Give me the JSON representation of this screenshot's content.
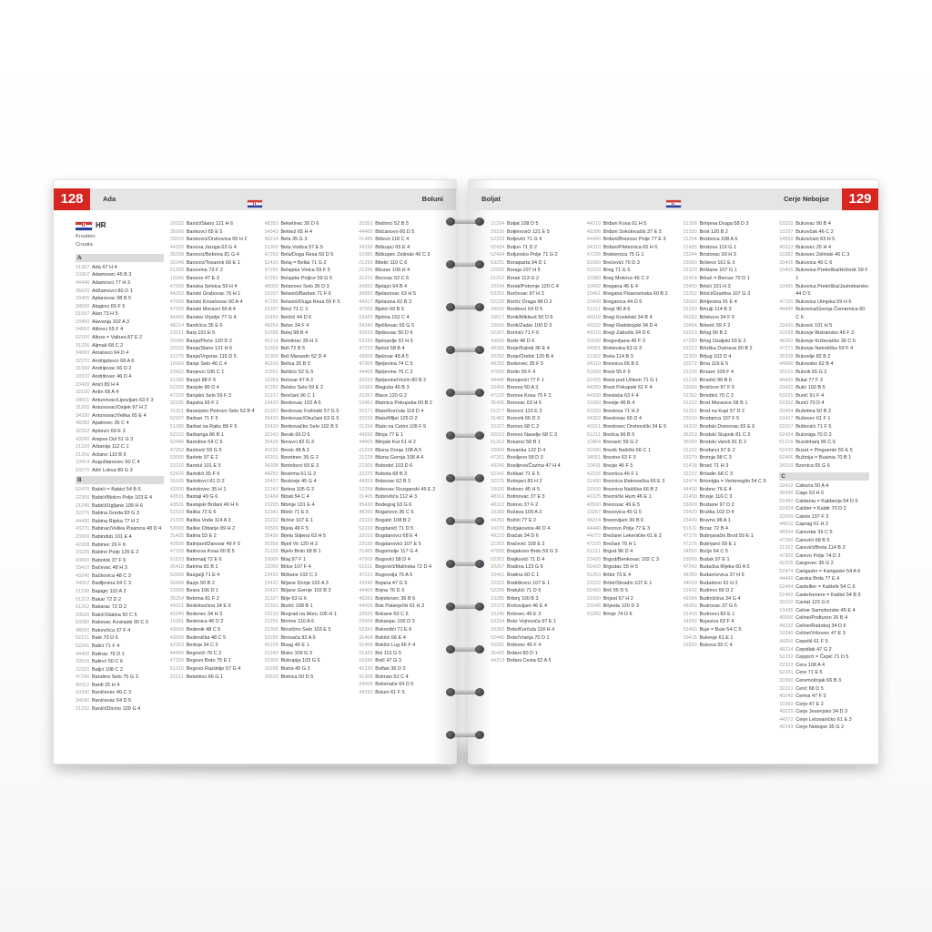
{
  "colors": {
    "accent_red": "#d7261f",
    "header_bar": "#e5e5e5",
    "code_text": "#a89a8e"
  },
  "left_page": {
    "number": "128",
    "tab_first": "Ada",
    "tab_last": "Boluni"
  },
  "right_page": {
    "number": "129",
    "tab_first": "Boljat",
    "tab_last": "Cerje Nebojse"
  },
  "intro": {
    "country_code": "HR",
    "name_de": "Kroatien",
    "name_en": "Croatia"
  },
  "columns": {
    "l1": [
      "§A",
      "31307 Ada 67 H 4",
      "10362 Adamovec 46 B 3",
      "44446 Adamovci 77 H 3",
      "35620 Adžamovci 80 D 1",
      "33405 Ajdanovac 98 B 5",
      "34000 Alaginci 65 F 5",
      "51557 Alan 73 H 5",
      "23450 Alavanja 102 A 3",
      "34550 Alilovci 65 F 4",
      "52100 Altura = Valtura 87 E 2",
      "31226 Aljmaš 68 C 2",
      "34000 Amatovci 64 D 4",
      "32270 Andrijaševci 68 A 6",
      "31500 Andrijevac 66 D 2",
      "10370 Andrilovec 46 D 4",
      "23420 Anići 89 H 4",
      "32100 Antin 68 A 4",
      "34551 Antunovac/Lipovljani 63 F 3",
      "31200 Antunovac/Osijek 67 H 2",
      "34330 Antunovac/Velika 65 E 4",
      "48260 Apatovec 36 C 4",
      "32252 Apševci 69 E 3",
      "43290 Arapov Dol 51 G 3",
      "21220 Arbanija 112 C 1",
      "21256 Aržano 110 B 5",
      "10414 Auguštanovec 60 C 4",
      "53270 Ažić Lokva 89 G 3",
      "§B",
      "52470 Babići = Babici 54 B 6",
      "22300 Babići/Mokro Polje 103 E 4",
      "21240 Babići/Ugljane 109 H 6",
      "32276 Babina Greda 83 G 3",
      "44430 Babina Rijeka 77 H 2",
      "43270 Babinac/Velika Pisanica 48 D 4",
      "23000 Babindub 101 E 4",
      "42208 Babinec 26 F 6",
      "20225 Babino Polje 125 E 2",
      "43000 Babotok 37 F 6",
      "33410 Bačevac 48 H 3",
      "43240 Bačkovica 48 C 3",
      "34552 Badljevina 64 C 3",
      "21230 Bajagić 110 A 2",
      "51222 Bakar 72 D 2",
      "51262 Bakarac 72 D 2",
      "33520 Bakić/Slatina 50 C 5",
      "53280 Bakovac Kosinjski 90 C 5",
      "48000 Bakovčica 37 F 4",
      "52211 Bale 70 D 6",
      "52341 Balići 71 F 4",
      "44400 Balinac 76 D 1",
      "33515 Balinci 50 C 6",
      "22320 Baljci 108 C 2",
      "47240 Bandino Selo 75 G 3",
      "40312 Banfi 25 H 4",
      "10340 Baničevec 46 C 3",
      "34540 Banićevac 64 D 5",
      "21232 Banići/Dicmo 109 G 4"
    ],
    "l2": [
      "20232 Banići/Slano 121 H 6",
      "35000 Bankovci 65 E 5",
      "33515 Bankovci/Orahovica 65 H 2",
      "44320 Banova Jaruga 63 G 4",
      "35208 Banovci/Bebrina 81 G 4",
      "32249 Banovci/Tovarnik 69 E 1",
      "51300 Banovina 73 F 2",
      "10340 Banovo 47 E 3",
      "47000 Banska Selnica 59 H 4",
      "44250 Banski Grabovac 76 H 1",
      "47000 Banski Kovačevac 60 A 4",
      "47000 Banski Moravci 60 A 4",
      "44400 Bansko Vrpolje 77 G 4",
      "48214 Banšćica 35 E 6",
      "23211 Banj 101 E 5",
      "20340 Banja/Ploče 120 D 2",
      "20232 Banja/Slano 121 H 6",
      "21276 Banja/Vrgorac 115 D 5",
      "10360 Banje Selo 46 C 4",
      "23422 Banjevci 106 C 1",
      "51280 Banjol 88 F 5",
      "52203 Banjole 86 D 4",
      "47220 Banjsko Selo 59 F 3",
      "32235 Bapska 69 F 2",
      "31321 Baranjsko Petrovo Selo 52 B 4",
      "52207 Barban 71 F 5",
      "51280 Barbat na Rabu 88 F 5",
      "52215 Barbariga 86 B 1",
      "52446 Baredine 54 C 6",
      "47252 Barilović 59 G 5",
      "53000 Barlete 97 E 2",
      "23210 Barotul 101 E 5",
      "52420 Bartolići 55 F 6",
      "35105 Bartolovci 81 D 2",
      "42000 Bartolovec 35 H 1",
      "43531 Bastaji 49 G 6",
      "43531 Bastajski Brđani 49 H 6",
      "51523 Baška 72 E 6",
      "21320 Baška Voda 114 A 3",
      "53000 Baške Oštarije 89 H 2",
      "31425 Batina 53 E 2",
      "43500 Batinjani/Daruvar 49 F 5",
      "47220 Batinova Kosa 60 B 5",
      "51523 Batomalj 72 E 6",
      "35410 Batrina 81 B 1",
      "52000 Bazgalji 71 E 4",
      "33406 Bazje 50 B 2",
      "22000 Beara 106 D 1",
      "35254 Bebrina 81 F 2",
      "49221 Bedekovčina 34 E 6",
      "42240 Bedenec 34 H 3",
      "10381 Bedenica 46 D 2",
      "43000 Bedenik 48 C 5",
      "43000 Bedenička 48 C 5",
      "42253 Bednja 34 C 2",
      "44400 Begovići 76 C 2",
      "47220 Begovo Brdo 75 E 1",
      "51315 Begovo Razdolje 57 G 4",
      "31511 Beketinci 66 G 1"
    ],
    "l3": [
      "48350 Beketinec 36 D 6",
      "34343 Bektež 65 H 4",
      "48214 Bela 35 G 3",
      "51300 Bela Vodica 57 E 5",
      "47250 Bela/Duga Resa 59 D 5",
      "52420 Belaj = Bellai 71 G 2",
      "47250 Belajska Vinica 59 F 5",
      "47250 Belajske Poljice 59 G 5",
      "48000 Belanovo Selo 36 D 3",
      "52207 Belavići/Barban 71 F 6",
      "47250 Belavići/Duga Resa 59 F 5",
      "52207 Belci 71 C 3",
      "10450 Belčići 44 D 6",
      "49254 Belec 34 F 4",
      "51556 Belej 98 B 4",
      "42214 Beletinec 35 H 3",
      "51559 Beli 72 B 5",
      "31300 Beli Manastir 52 D 4",
      "40319 Belica 26 B 5",
      "31551 Belišće 52 G 5",
      "10363 Belovar 47 A 3",
      "47250 Belsko Selo 59 E 2",
      "51217 Benčani 96 C 1",
      "23420 Benkovac 102 A 5",
      "51322 Benkovac Fužinski 57 G 5",
      "35430 Benkovac/Okučani 63 G 6",
      "23420 Benkovačko Selo 102 B 5",
      "32243 Berak 69 D 6",
      "35425 Beravci 82 G 3",
      "43232 Berek 48 A 3",
      "42201 Beretinec 35 G 2",
      "34308 Bertelovci 65 E 3",
      "44250 Bestrma 61 G 2",
      "10437 Bestovje 45 G 4",
      "22243 Betina 105 G 2",
      "52460 Bibali 54 C 4",
      "23205 Bibinje 101 E 4",
      "52341 Bibići 71 E 5",
      "22222 Bićine 107 E 1",
      "43500 Bijela 49 F 5",
      "35430 Bijela Stijena 63 H 5",
      "20356 Bijeli Vir 120 H 2",
      "31226 Bijelo Brdo 68 B 1",
      "53000 Bilaj 97 F 1",
      "22000 Bilice 107 F 4",
      "23450 Bilišane 102 C 2",
      "23422 Biljane Donje 102 A 3",
      "23422 Biljane Gornje 102 B 3",
      "31327 Bilje 53 G 6",
      "22320 Biočić 108 B 1",
      "23210 Biograd na Moru 105 H 1",
      "21256 Biorine 110 A 6",
      "22305 Biovičino Selo 103 E 5",
      "53250 Birovača 92 A 6",
      "42226 Bisag 46 E 1",
      "21240 Bisko 109 G 3",
      "22300 Biskupija 103 G 6",
      "10298 Bistra 45 G 3",
      "33520 Bistrica 50 D 5"
    ],
    "l4": [
      "31551 Bistrinci 52 B 5",
      "44400 Bišćanovo 60 D 5",
      "21485 Biševo 118 C 4",
      "34330 Biškupci 65 E 4",
      "10380 Biškupec Zelinski 46 C 3",
      "21230 Bitelić 110 C 6",
      "21236 Biturac 109 H 4",
      "31222 Bizovac 52 C 6",
      "34550 Bjelajci 64 B 4",
      "34550 Bjelanovac 63 H 5",
      "44317 Bjelavina 62 B 3",
      "47000 Bjelići 60 B 5",
      "23420 Bjelina 102 C 4",
      "34340 Bjeliševac 65 G 5",
      "33520 Bjelkovac 50 D 6",
      "53230 Bjelopolje 91 H 5",
      "47220 Bjeloš 58 B 4",
      "43000 Bjelovar 48 A 5",
      "47300 Bjeljevina 74 C 5",
      "44400 Bjeljevine 76 C 2",
      "33520 Bjeljevine/Voćin 80 B 2",
      "10362 Blaguša 46 B 3",
      "20357 Blace 120 G 2",
      "10451 Blatnica Pokupska 60 B 2",
      "20271 Blato/Korčula 118 D 4",
      "20226 Blato/Mljet 125 D 2",
      "21254 Blato na Cetini 109 F 5",
      "44250 Blinja 77 E 1",
      "44000 Blinjski Kut 61 H 2",
      "21228 Blizna Donja 108 A 5",
      "21228 Blizna Gornja 108 A 4",
      "22305 Bobodol 103 D 6",
      "32225 Bobota 68 B 3",
      "44203 Bobovac 62 B 3",
      "10299 Bobovec Rozganski 45 E 2",
      "21405 Bobovišća 112 H 3",
      "35430 Bodegraj 63 G 6",
      "48260 Bogačevo 36 C 5",
      "22320 Bogatić 108 B 2",
      "52220 Bogdanići 71 D 5",
      "32010 Bogdanovci 68 E 4",
      "22030 Bogdanovići 107 E 5",
      "21469 Bogomolje 117 G 4",
      "47000 Bogovići 58 D 4",
      "51511 Bogovići/Malinska 72 D 4",
      "47222 Bogovolja 75 A 5",
      "43240 Bojana 47 G 5",
      "44400 Bojna 76 D 3",
      "48260 Bojnikovec 36 B 6",
      "44000 Bok Palanječki 61 H 3",
      "33520 Bokane 50 C 6",
      "23000 Bokanjac 100 D 3",
      "52341 Bokordići 71 E 6",
      "31404 Bokšić 66 E 4",
      "31404 Bokšić Lug 66 F 4",
      "21420 Bol 113 G 5",
      "10345 Bolč 47 G 3",
      "42230 Bolfan 36 D 3",
      "31308 Bolman 52 C 4",
      "34000 Bolomače 64 D 5",
      "44250 Boluni 61 F 5"
    ],
    "r1": [
      "21204 Boljat 108 D 5",
      "20230 Boljenovići 121 E 5",
      "52333 Boljevići 71 G 4",
      "52434 Boljun 71 D 2",
      "52434 Boljunsko Polje 71 G 2",
      "53291 Bonaparta 94 D 1",
      "22030 Boraja 107 H 5",
      "21210 Borak 113 G 2",
      "20244 Borak/Potomje 120 C 4",
      "53250 Borčevac 97 H 3",
      "52220 Borčić Draga 98 D 2",
      "34000 Borđevci 64 D 5",
      "33517 Borik/Mikleuš 50 D 6",
      "23000 Borik/Zadar 100 D 3",
      "52207 Borinići 71 F 6",
      "43000 Borki 48 D 6",
      "48260 Borje/Kalnik 36 E 4",
      "20250 Borje/Orebić 120 B 4",
      "49250 Borkovec 35 F 5",
      "47000 Borlin 59 F 4",
      "44440 Borojevići 77 F 1",
      "33406 Borova 50 A 3",
      "47220 Borova Kosa 75 F 2",
      "35430 Borovac 63 H 6",
      "21277 Borovci 115 E 3",
      "31402 Borovik 66 D 3",
      "32227 Borovo 68 C 2",
      "32010 Borovo Naselje 68 C 3",
      "51312 Bosanci 58 B 1",
      "20000 Bosanka 122 D 4",
      "47251 Bosiljevo 58 D 3",
      "43240 Bosiljevo/Čazma 47 H 4",
      "52341 Boškari 71 E 5",
      "32275 Bošnjaci 83 H 2",
      "10020 Botinec 45 H 5",
      "48316 Botinovac 37 E 3",
      "48322 Botovo 37 F 2",
      "23286 Božava 100 A 2",
      "44250 Božići 77 E 2",
      "10370 Božjakovina 46 D 4",
      "49210 Bračak 34 D 6",
      "21203 Bračević 109 E 2",
      "47000 Brajakovo Brdo 59 G 3",
      "52352 Brajkovići 71 D 4",
      "20207 Brašina 123 G 6",
      "10451 Bratina 60 C 1",
      "22222 Bratiškovci 107 E 1",
      "52206 Bratulići 71 D 5",
      "23285 Brbinj 100 B 3",
      "10370 Brckovljani 46 E 4",
      "10340 Brčevec 46 E 3",
      "53234 Brdo Vojnovića 97 E 1",
      "20260 Brdo/Korčula 118 H 4",
      "52440 Brdo/Vranja 70 D 1",
      "10291 Brdovec 45 F 4",
      "35420 Brđani 80 D 1",
      "44213 Brđani Cesta 62 A 5"
    ],
    "r2": [
      "44210 Brđani Kosa 61 H 5",
      "48306 Brđani Sokolovački 37 E 5",
      "44440 Brđani/Brezovo Polje 77 E 3",
      "34310 Brđani/Pleternica 65 H 6",
      "47220 Brebornica 75 G 1",
      "52000 Brečevići 70 D 3",
      "52220 Breg 71 G 5",
      "10380 Breg Mokrice 46 C 2",
      "10432 Bregana 45 E 4",
      "10451 Bregana Pisarovinska 60 B 2",
      "10430 Breganica 44 D 5",
      "51211 Bregi 96 A 6",
      "49218 Bregi Kostelski 34 B 4",
      "49232 Bregi Radobojski 34 D 4",
      "49210 Bregi Zabočki 34 D 6",
      "10290 Bregovljana 45 F 3",
      "34551 Brekinska 63 G 3",
      "21322 Brela 114 B 3",
      "34310 Bresnica 65 B 6",
      "52420 Brest 55 F 5",
      "52425 Brest pod Učkom 71 G 1",
      "44250 Brest Pokupski 61 F 4",
      "44330 Brestača 63 F 4",
      "10360 Brestje 46 B 4",
      "52333 Brestova 71 H 2",
      "34322 Brestovac 65 D 4",
      "49221 Brestovec Orehovički 34 E 5",
      "51211 Brešca 96 B 5",
      "10454 Brezarić 59 G 2",
      "31500 Brezik Našički 66 C 1",
      "34551 Brezine 63 F 3",
      "10431 Brezje 45 F 5",
      "42226 Breznica 46 F 1",
      "31400 Breznica Đakovačka 66 E 3",
      "31500 Breznica Našička 66 B 2",
      "42225 Breznički Hum 46 E 1",
      "43500 Brezovac 49 E 5",
      "10257 Brezovica 45 G 5",
      "48214 Brezovljani 36 B 6",
      "44440 Brezovo Polje 77 E 3",
      "44272 Brežane Lekeničke 61 E 2",
      "47220 Brežani 75 H 1",
      "51211 Brgud 96 D 4",
      "23420 Brgud/Benkovac 102 C 3",
      "52420 Brgudac 55 H 5",
      "51253 Bribir 73 E 4",
      "22222 Bribir/Skradin 107 E 1",
      "52460 Brič 55 D 5",
      "31000 Brijest 67 H 2",
      "20246 Brijesta 120 D 3",
      "53260 Brinje 74 D 6"
    ],
    "r3": [
      "51306 Brinjeva Draga 58 D 3",
      "21330 Brist 120 B 2",
      "21204 Bristivica 108 A 6",
      "21465 Bristova 119 G 1",
      "23244 Bristovac 93 H 3",
      "23000 Briševo 101 E 3",
      "22320 Brištane 107 G 1",
      "52424 Brkač = Bercaz 70 D 1",
      "23450 Brkići 101 H 3",
      "22202 Brkići/Gradina 107 G 3",
      "53000 Brkljevina 91 E 4",
      "21250 Brkulji 114 B 3",
      "49282 Brlekovo 34 F 5",
      "10454 Brlenić 59 F 2",
      "53223 Brlog 90 B 2",
      "47280 Brlog Ozaljski 59 E 2",
      "53223 Brloška Dubrava 90 B 2",
      "22300 Brljug 102 D 4",
      "20272 Brna 119 E 5",
      "21230 Brnaze 109 F 4",
      "51218 Brnelići 96 B 6",
      "53000 Brničevo 97 F 5",
      "52352 Brnobići 70 C 2",
      "51312 Brod Moravice 58 B 1",
      "51301 Brod na Kupi 57 D 2",
      "22010 Brodarica 107 F 5",
      "34310 Brodski Drenovac 65 E 6",
      "35253 Brodski Stupnik 81 C 2",
      "35000 Brodski Varoš 81 D 2",
      "31222 Brođanci 67 E 2",
      "53270 Brotnja 98 C 3",
      "51418 Brseč 71 H 3",
      "32222 Bršadin 68 C 3",
      "52474 Brtonigla = Verteneglio 54 C 5",
      "44400 Brubno 76 E 4",
      "21450 Brusje 116 C 3",
      "53000 Brušane 97 D 2",
      "23420 Bruška 102 D 4",
      "23440 Bruvno 98 A 1",
      "51511 Brzac 72 B 4",
      "47276 Bubnjarački Brod 59 E 1",
      "47276 Bubnjarci 59 E 1",
      "34550 Bučje 64 C 5",
      "53000 Budak 97 E 1",
      "47242 Budačka Rijeka 60 A 5",
      "48350 Budančevica 37 H 6",
      "44010 Budaševo 61 H 2",
      "31432 Budimci 66 D 2",
      "49284 Budinšćina 34 G 4",
      "48350 Budrovac 37 G 6",
      "31400 Budrovci 83 E 1",
      "34550 Bujavica 63 F 4",
      "52460 Buje = Buie 54 C 5",
      "10415 Bukevje 61 E 1",
      "33520 Bukova 50 C 4"
    ],
    "r4": [
      "53220 Bukovac 90 B 4",
      "10297 Bukovčak 46 C 2",
      "34550 Bukovčani 63 H 5",
      "40313 Bukovec 25 H 4",
      "10382 Bukovec Zelinski 46 C 3",
      "33406 Bukovica 49 C 6",
      "10455 Bukovica Prekriška/Hrženik 59 F 1",
      "10450 Bukovica Prekriška/Jastrebarsko 44 D 5",
      "47220 Bukovica Utinjska 59 H 6",
      "44400 Bukovica/Gornja Čemernica 60 C 6",
      "23420 Buković 101 H 5",
      "10298 Bukovje Bistransko 45 F 3",
      "48260 Bukovje Križevačko 36 C 6",
      "47271 Bukovje Netretičko 59 F 4",
      "35209 Bukovlje 82 B 2",
      "44000 Bukovsko 62 B 4",
      "35510 Bukvik 65 G 2",
      "44400 Bulat 77 F 3",
      "23420 Bulić 102 B 5",
      "53225 Bunić 91 F 4",
      "52352 Burići 70 D 4",
      "33404 Bušetina 50 B 2",
      "10417 Buševec 61 F 1",
      "52207 Butkovići 71 F 5",
      "52424 Butoniga 70 D 2",
      "51219 Buzdohanj 96 C 6",
      "52420 Buzet = Pinguente 55 E 5",
      "52466 Bužinija = Businia 70 B 1",
      "34310 Bzenica 65 G 6",
      "§C",
      "33412 Cabuna 50 A 4",
      "35430 Cage 63 H 6",
      "52460 Caldania = Kaldanija 54 D 5",
      "52424 Caldier = Kaldir 70 D 2",
      "22000 Caleta 107 F 3",
      "44010 Caprag 61 H 2",
      "48264 Carevdar 36 C 5",
      "47250 Carevići 68 B 5",
      "21322 Carevići/Brela 114 B 3",
      "47303 Carevo Polje 74 D 3",
      "42205 Cargovec 35 G 2",
      "52474 Carigador = Karigador 54 A 6",
      "44440 Carska Brda 77 E 4",
      "52464 Castellier = Kaštelir 54 C 6",
      "52460 Castelvenere = Kaštel 54 B 5",
      "20210 Cavtat 123 G 6",
      "10435 Celine Samoborske 45 E 4",
      "40000 Celine/Podturen 26 B 4",
      "49232 Celine/Radoboj 34 D 6",
      "10340 Celine/Vrbovec 47 E 3",
      "44250 Cepeliš 61 F 5",
      "48214 Cepidlak 47 G 2",
      "52232 Ceppich = Čepić 71 D 5",
      "22323 Cera 108 A 4",
      "52341 Cere 71 E 5",
      "31500 Ceremošnjak 66 B 3",
      "32221 Cerić 68 D 5",
      "43240 Cerina 47 F 5",
      "10360 Cerje 47 E 2",
      "49225 Cerje Jesenjsko 34 D 3",
      "44272 Cerje Letovanićko 61 E 3",
      "42243 Cerje Nebojse 35 G 2"
    ]
  }
}
